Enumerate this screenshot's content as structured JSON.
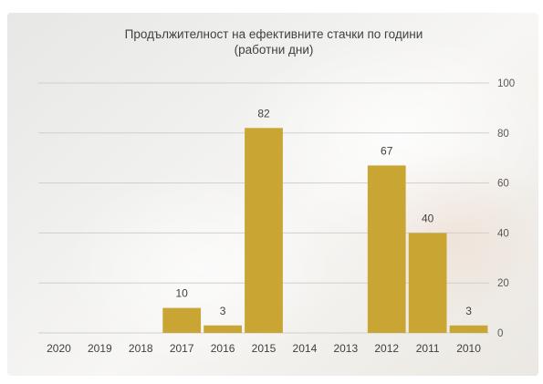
{
  "chart_data": {
    "type": "bar",
    "title": "Продължителност на ефективните стачки по години",
    "subtitle": "(работни дни)",
    "categories": [
      "2020",
      "2019",
      "2018",
      "2017",
      "2016",
      "2015",
      "2014",
      "2013",
      "2012",
      "2011",
      "2010"
    ],
    "values": [
      0,
      0,
      0,
      10,
      3,
      82,
      0,
      0,
      67,
      40,
      3
    ],
    "data_labels": [
      "",
      "",
      "",
      "10",
      "3",
      "82",
      "",
      "",
      "67",
      "40",
      "3"
    ],
    "y_ticks": [
      "0",
      "20",
      "40",
      "60",
      "80",
      "100"
    ],
    "ylim": [
      0,
      100
    ],
    "y_axis_position": "right",
    "grid": true,
    "colors": {
      "bar": "#c9a533",
      "grid": "#cfcfcf",
      "text": "#404040"
    }
  }
}
